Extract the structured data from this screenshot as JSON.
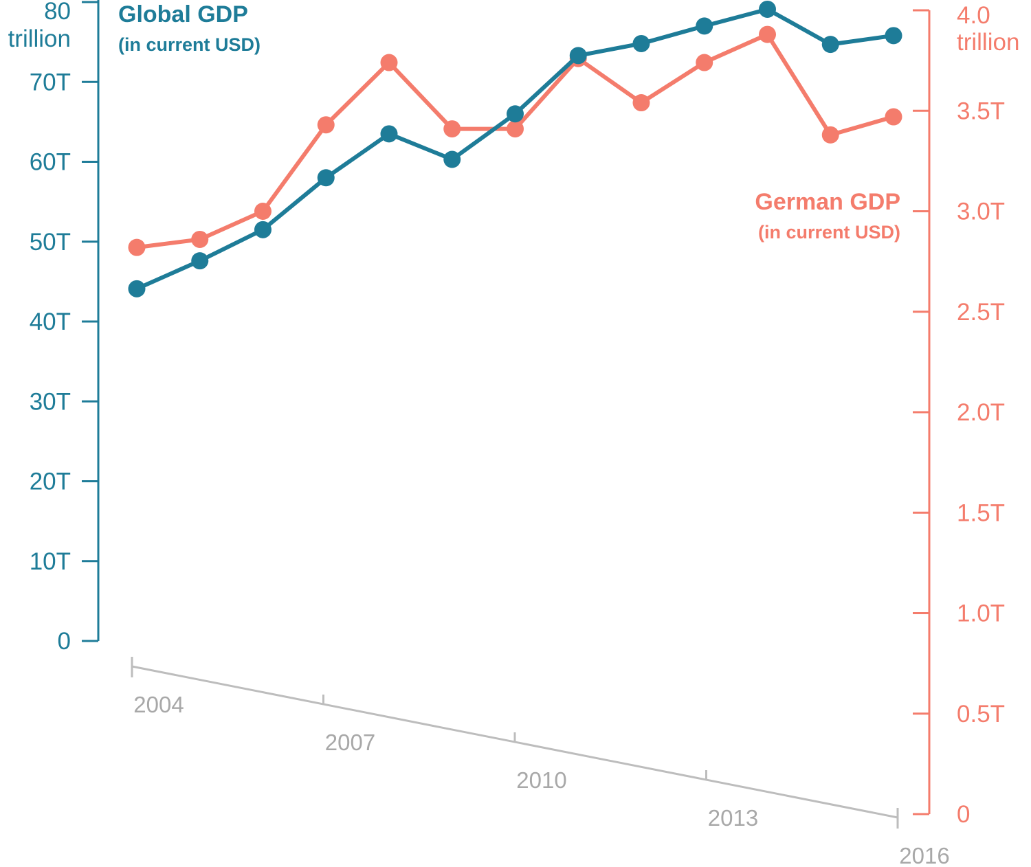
{
  "chart_data": {
    "type": "line",
    "x": [
      2004,
      2005,
      2006,
      2007,
      2008,
      2009,
      2010,
      2011,
      2012,
      2013,
      2014,
      2015,
      2016
    ],
    "x_ticks": [
      "2004",
      "2007",
      "2010",
      "2013",
      "2016"
    ],
    "series": [
      {
        "name": "Global GDP",
        "name_sub": "(in current USD)",
        "axis": "left",
        "color": "#1e7c98",
        "values": [
          44.1,
          47.6,
          51.5,
          58.0,
          63.5,
          60.3,
          66.0,
          73.3,
          74.8,
          77.0,
          79.1,
          74.7,
          75.8
        ]
      },
      {
        "name": "German GDP",
        "name_sub": "(in current USD)",
        "axis": "right",
        "color": "#f47c6c",
        "values": [
          2.82,
          2.86,
          3.0,
          3.43,
          3.74,
          3.41,
          3.41,
          3.76,
          3.54,
          3.74,
          3.88,
          3.38,
          3.47
        ]
      }
    ],
    "y_left": {
      "range": [
        0,
        80
      ],
      "ticks": [
        "0",
        "10T",
        "20T",
        "30T",
        "40T",
        "50T",
        "60T",
        "70T"
      ],
      "top_label": "80",
      "top_unit": "trillion"
    },
    "y_right": {
      "range": [
        0,
        4.0
      ],
      "ticks": [
        "0",
        "0.5T",
        "1.0T",
        "1.5T",
        "2.0T",
        "2.5T",
        "3.0T",
        "3.5T"
      ],
      "top_label": "4.0",
      "top_unit": "trillion"
    },
    "grid": false,
    "legend": "none (series labelled directly)"
  }
}
